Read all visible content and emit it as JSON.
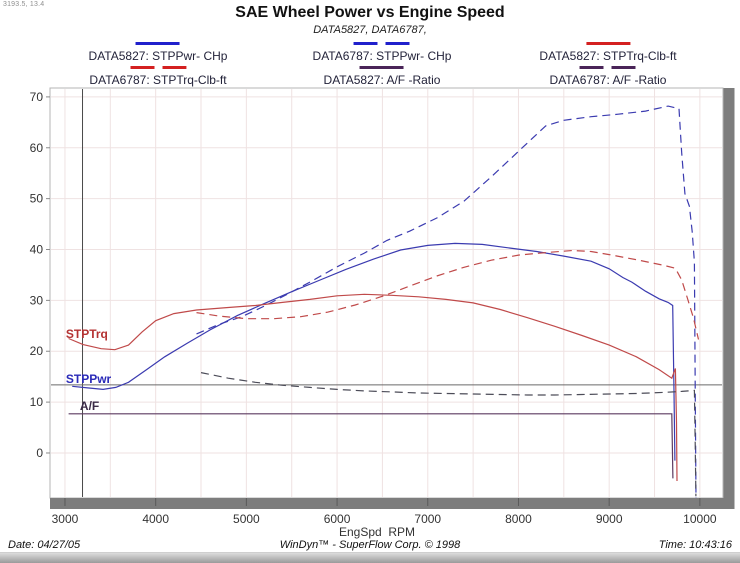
{
  "window": {
    "cursor_readout": "3193.5, 13.4"
  },
  "header": {
    "title": "SAE Wheel Power vs Engine Speed",
    "subtitle": "DATA5827, DATA6787,"
  },
  "legend": {
    "items": [
      {
        "label": "DATA5827: STPPwr- CHp",
        "color": "#2020cc",
        "dashed": false
      },
      {
        "label": "DATA6787: STPPwr- CHp",
        "color": "#2020cc",
        "dashed": true
      },
      {
        "label": "DATA5827: STPTrq-Clb-ft",
        "color": "#d42020",
        "dashed": false
      },
      {
        "label": "DATA6787: STPTrq-Clb-ft",
        "color": "#d42020",
        "dashed": true
      },
      {
        "label": "DATA5827:  A/F  -Ratio",
        "color": "#4a2458",
        "dashed": false
      },
      {
        "label": "DATA6787:  A/F  -Ratio",
        "color": "#4a2458",
        "dashed": true
      }
    ]
  },
  "chart_data": {
    "type": "line",
    "title": "SAE Wheel Power vs Engine Speed",
    "subtitle": "DATA5827, DATA6787,",
    "xlabel": "EngSpd  RPM",
    "ylabel": "",
    "x_range": [
      2835,
      10255
    ],
    "y_range": [
      -8.85,
      71.75
    ],
    "x_ticks": [
      3000,
      4000,
      5000,
      6000,
      7000,
      8000,
      9000,
      10000
    ],
    "y_ticks": [
      0,
      10,
      20,
      30,
      40,
      50,
      60,
      70
    ],
    "grid": {
      "x_start": 3000,
      "x_end": 10000,
      "x_step": 500,
      "y_start": 0,
      "y_end": 70,
      "y_step": 10,
      "color": "#efe2e2"
    },
    "cursor": {
      "rpm": 3193.5,
      "value": 13.4
    },
    "series": [
      {
        "name": "DATA5827: STPPwr- CHp",
        "run": "DATA5827",
        "channel": "STPPwr-CHp",
        "color": "#3b3bb0",
        "dashed": false,
        "points": [
          [
            3080,
            13.1
          ],
          [
            3250,
            12.8
          ],
          [
            3420,
            12.5
          ],
          [
            3560,
            12.9
          ],
          [
            3700,
            13.9
          ],
          [
            3900,
            16.4
          ],
          [
            4100,
            18.9
          ],
          [
            4350,
            21.6
          ],
          [
            4600,
            24.2
          ],
          [
            4900,
            27.0
          ],
          [
            5200,
            29.4
          ],
          [
            5500,
            31.7
          ],
          [
            5800,
            33.9
          ],
          [
            6100,
            36.1
          ],
          [
            6400,
            38.1
          ],
          [
            6700,
            39.9
          ],
          [
            7000,
            40.8
          ],
          [
            7300,
            41.2
          ],
          [
            7600,
            41.0
          ],
          [
            7900,
            40.3
          ],
          [
            8200,
            39.6
          ],
          [
            8500,
            38.7
          ],
          [
            8800,
            37.7
          ],
          [
            9000,
            36.2
          ],
          [
            9150,
            34.5
          ],
          [
            9250,
            33.6
          ],
          [
            9400,
            31.8
          ],
          [
            9550,
            30.3
          ],
          [
            9650,
            29.6
          ],
          [
            9700,
            29.0
          ],
          [
            9715,
            12.0
          ],
          [
            9725,
            -1.5
          ]
        ]
      },
      {
        "name": "DATA6787: STPPwr- CHp",
        "run": "DATA6787",
        "channel": "STPPwr-CHp",
        "color": "#3b3bb0",
        "dashed": true,
        "points": [
          [
            4450,
            23.4
          ],
          [
            4700,
            25.3
          ],
          [
            4950,
            26.8
          ],
          [
            5200,
            28.9
          ],
          [
            5450,
            31.2
          ],
          [
            5700,
            33.6
          ],
          [
            6000,
            36.6
          ],
          [
            6300,
            39.3
          ],
          [
            6550,
            41.8
          ],
          [
            6800,
            43.6
          ],
          [
            7100,
            46.2
          ],
          [
            7400,
            49.5
          ],
          [
            7700,
            54.3
          ],
          [
            8000,
            59.3
          ],
          [
            8300,
            64.3
          ],
          [
            8500,
            65.4
          ],
          [
            8800,
            66.1
          ],
          [
            9100,
            66.6
          ],
          [
            9400,
            67.2
          ],
          [
            9650,
            68.2
          ],
          [
            9770,
            67.7
          ],
          [
            9800,
            59.0
          ],
          [
            9835,
            51.0
          ],
          [
            9885,
            48.5
          ],
          [
            9915,
            43.5
          ],
          [
            9940,
            37.5
          ],
          [
            9950,
            10.0
          ],
          [
            9957,
            -9.0
          ]
        ]
      },
      {
        "name": "DATA5827: STPTrq-Clb-ft",
        "run": "DATA5827",
        "channel": "STPTrq-Clb-ft",
        "color": "#c04a4a",
        "dashed": false,
        "points": [
          [
            3040,
            22.5
          ],
          [
            3200,
            21.3
          ],
          [
            3400,
            20.5
          ],
          [
            3550,
            20.3
          ],
          [
            3700,
            21.2
          ],
          [
            3850,
            23.8
          ],
          [
            4000,
            26.0
          ],
          [
            4200,
            27.4
          ],
          [
            4450,
            28.1
          ],
          [
            4800,
            28.6
          ],
          [
            5100,
            29.0
          ],
          [
            5400,
            29.6
          ],
          [
            5700,
            30.2
          ],
          [
            6000,
            30.9
          ],
          [
            6300,
            31.2
          ],
          [
            6600,
            31.0
          ],
          [
            6900,
            30.7
          ],
          [
            7200,
            30.2
          ],
          [
            7500,
            29.5
          ],
          [
            7800,
            28.2
          ],
          [
            8100,
            26.6
          ],
          [
            8400,
            24.9
          ],
          [
            8700,
            23.1
          ],
          [
            9000,
            21.2
          ],
          [
            9300,
            18.9
          ],
          [
            9550,
            16.4
          ],
          [
            9690,
            14.7
          ],
          [
            9730,
            16.6
          ],
          [
            9742,
            6.0
          ],
          [
            9748,
            -5.5
          ]
        ]
      },
      {
        "name": "DATA6787: STPTrq-Clb-ft",
        "run": "DATA6787",
        "channel": "STPTrq-Clb-ft",
        "color": "#c04a4a",
        "dashed": true,
        "points": [
          [
            4450,
            27.6
          ],
          [
            4700,
            26.9
          ],
          [
            5000,
            26.4
          ],
          [
            5300,
            26.4
          ],
          [
            5600,
            26.8
          ],
          [
            5900,
            27.7
          ],
          [
            6200,
            29.1
          ],
          [
            6500,
            30.8
          ],
          [
            6800,
            32.8
          ],
          [
            7100,
            34.8
          ],
          [
            7400,
            36.5
          ],
          [
            7700,
            37.9
          ],
          [
            8000,
            38.9
          ],
          [
            8300,
            39.4
          ],
          [
            8600,
            39.8
          ],
          [
            8800,
            39.6
          ],
          [
            9000,
            39.0
          ],
          [
            9300,
            38.0
          ],
          [
            9600,
            36.9
          ],
          [
            9730,
            36.3
          ],
          [
            9800,
            34.0
          ],
          [
            9870,
            30.0
          ],
          [
            9930,
            26.5
          ],
          [
            9985,
            22.3
          ]
        ]
      },
      {
        "name": "DATA5827: A/F -Ratio",
        "run": "DATA5827",
        "channel": "A/F-Ratio",
        "color": "#5c3a60",
        "dashed": false,
        "points": [
          [
            3040,
            7.7
          ],
          [
            6500,
            7.7
          ],
          [
            9690,
            7.7
          ],
          [
            9703,
            -5.0
          ]
        ]
      },
      {
        "name": "DATA6787: A/F -Ratio",
        "run": "DATA6787",
        "channel": "A/F-Ratio",
        "color": "#4c4c58",
        "dashed": true,
        "points": [
          [
            4500,
            15.8
          ],
          [
            4800,
            14.7
          ],
          [
            5100,
            13.9
          ],
          [
            5400,
            13.3
          ],
          [
            5700,
            12.9
          ],
          [
            6000,
            12.5
          ],
          [
            6300,
            12.2
          ],
          [
            6600,
            12.0
          ],
          [
            6900,
            11.8
          ],
          [
            7200,
            11.7
          ],
          [
            7500,
            11.6
          ],
          [
            7800,
            11.5
          ],
          [
            8100,
            11.4
          ],
          [
            8400,
            11.4
          ],
          [
            8700,
            11.5
          ],
          [
            9000,
            11.6
          ],
          [
            9300,
            11.7
          ],
          [
            9600,
            11.9
          ],
          [
            9800,
            12.1
          ],
          [
            9940,
            12.3
          ],
          [
            9948,
            2.0
          ],
          [
            9956,
            -8.5
          ]
        ]
      }
    ],
    "annotations": [
      {
        "text": "STPTrq",
        "rpm": 3010,
        "value": 23.4,
        "color": "#b43232"
      },
      {
        "text": "STPPwr",
        "rpm": 3010,
        "value": 14.6,
        "color": "#2a2ab8"
      },
      {
        "text": "A/F",
        "rpm": 3165,
        "value": 9.3,
        "color": "#3a2a46"
      }
    ],
    "legend_position": "top",
    "grid_on": true
  },
  "footer": {
    "date": "Date: 04/27/05",
    "brand": "WinDyn™ - SuperFlow Corp. © 1998",
    "time": "Time: 10:43:16"
  }
}
